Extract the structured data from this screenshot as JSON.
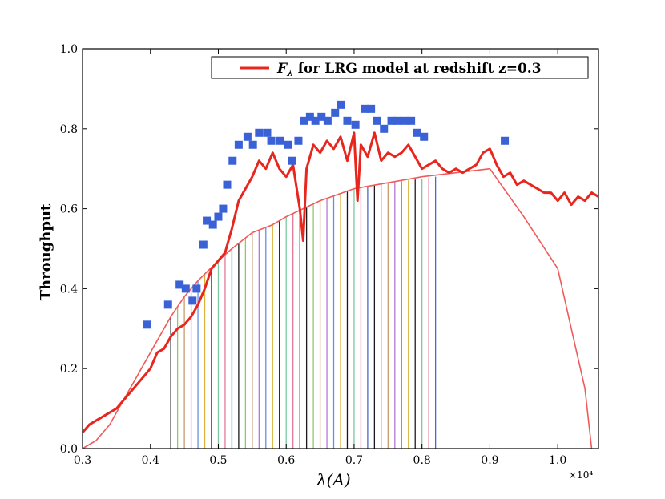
{
  "chart_data": {
    "type": "line",
    "title": "",
    "xlabel": "λ(A)",
    "ylabel": "Throughput",
    "x_multiplier": "×10⁴",
    "xlim": [
      0.3,
      1.06
    ],
    "ylim": [
      0.0,
      1.0
    ],
    "grid": false,
    "legend_placement": "top-right",
    "x_ticks": [
      0.3,
      0.4,
      0.5,
      0.6,
      0.7,
      0.8,
      0.9,
      1.0
    ],
    "x_tick_labels": [
      "0.3",
      "0.4",
      "0.5",
      "0.6",
      "0.7",
      "0.8",
      "0.9",
      "1.0"
    ],
    "y_ticks": [
      0.0,
      0.2,
      0.4,
      0.6,
      0.8,
      1.0
    ],
    "y_tick_labels": [
      "0.0",
      "0.2",
      "0.4",
      "0.6",
      "0.8",
      "1.0"
    ],
    "legend": {
      "label": "F_λ for LRG model at redshift z=0.3",
      "label_prefix": "F",
      "label_sub": "λ",
      "label_rest": " for LRG model at redshift z=0.3",
      "color": "#e8261e"
    },
    "series": [
      {
        "name": "F_λ for LRG model at redshift z=0.3",
        "style": "line",
        "color": "#e8261e",
        "x": [
          0.3,
          0.31,
          0.32,
          0.33,
          0.34,
          0.35,
          0.36,
          0.37,
          0.38,
          0.39,
          0.4,
          0.41,
          0.42,
          0.43,
          0.44,
          0.45,
          0.46,
          0.47,
          0.48,
          0.49,
          0.5,
          0.51,
          0.52,
          0.53,
          0.54,
          0.55,
          0.56,
          0.57,
          0.58,
          0.59,
          0.6,
          0.61,
          0.62,
          0.625,
          0.63,
          0.64,
          0.65,
          0.66,
          0.67,
          0.68,
          0.69,
          0.7,
          0.705,
          0.71,
          0.72,
          0.73,
          0.74,
          0.75,
          0.76,
          0.77,
          0.78,
          0.79,
          0.8,
          0.81,
          0.82,
          0.83,
          0.84,
          0.85,
          0.86,
          0.87,
          0.88,
          0.89,
          0.9,
          0.905,
          0.91,
          0.92,
          0.93,
          0.94,
          0.95,
          0.96,
          0.97,
          0.98,
          0.99,
          1.0,
          1.01,
          1.02,
          1.03,
          1.04,
          1.05,
          1.06
        ],
        "y": [
          0.04,
          0.06,
          0.07,
          0.08,
          0.09,
          0.1,
          0.12,
          0.14,
          0.16,
          0.18,
          0.2,
          0.24,
          0.25,
          0.28,
          0.3,
          0.31,
          0.33,
          0.36,
          0.4,
          0.45,
          0.47,
          0.49,
          0.55,
          0.62,
          0.65,
          0.68,
          0.72,
          0.7,
          0.74,
          0.7,
          0.68,
          0.71,
          0.6,
          0.52,
          0.7,
          0.76,
          0.74,
          0.77,
          0.75,
          0.78,
          0.72,
          0.79,
          0.62,
          0.76,
          0.73,
          0.79,
          0.72,
          0.74,
          0.73,
          0.74,
          0.76,
          0.73,
          0.7,
          0.71,
          0.72,
          0.7,
          0.69,
          0.7,
          0.69,
          0.7,
          0.71,
          0.74,
          0.75,
          0.73,
          0.71,
          0.68,
          0.69,
          0.66,
          0.67,
          0.66,
          0.65,
          0.64,
          0.64,
          0.62,
          0.64,
          0.61,
          0.63,
          0.62,
          0.64,
          0.63
        ]
      },
      {
        "name": "",
        "style": "line",
        "color": "#f05a5a",
        "x": [
          0.3,
          0.32,
          0.34,
          0.36,
          0.38,
          0.4,
          0.43,
          0.45,
          0.47,
          0.5,
          0.52,
          0.55,
          0.58,
          0.6,
          0.65,
          0.7,
          0.75,
          0.8,
          0.85,
          0.9,
          0.95,
          1.0,
          1.02,
          1.04,
          1.05
        ],
        "y": [
          0.0,
          0.02,
          0.06,
          0.12,
          0.18,
          0.24,
          0.33,
          0.38,
          0.42,
          0.47,
          0.5,
          0.54,
          0.56,
          0.58,
          0.62,
          0.65,
          0.665,
          0.68,
          0.69,
          0.7,
          0.58,
          0.45,
          0.3,
          0.15,
          0.0
        ]
      },
      {
        "name": "",
        "style": "markers",
        "color": "#3a62d6",
        "x": [
          0.395,
          0.426,
          0.443,
          0.452,
          0.462,
          0.468,
          0.478,
          0.483,
          0.492,
          0.5,
          0.507,
          0.513,
          0.521,
          0.53,
          0.543,
          0.551,
          0.56,
          0.572,
          0.578,
          0.591,
          0.603,
          0.609,
          0.618,
          0.626,
          0.635,
          0.643,
          0.652,
          0.661,
          0.672,
          0.68,
          0.69,
          0.702,
          0.716,
          0.725,
          0.734,
          0.744,
          0.755,
          0.764,
          0.774,
          0.784,
          0.793,
          0.803,
          0.922
        ],
        "y": [
          0.31,
          0.36,
          0.41,
          0.4,
          0.37,
          0.4,
          0.51,
          0.57,
          0.56,
          0.58,
          0.6,
          0.66,
          0.72,
          0.76,
          0.78,
          0.76,
          0.79,
          0.79,
          0.77,
          0.77,
          0.76,
          0.72,
          0.77,
          0.82,
          0.83,
          0.82,
          0.83,
          0.82,
          0.84,
          0.86,
          0.82,
          0.81,
          0.85,
          0.85,
          0.82,
          0.8,
          0.82,
          0.82,
          0.82,
          0.82,
          0.79,
          0.78,
          0.77
        ]
      }
    ],
    "filter_bands": {
      "x_start": 0.43,
      "x_end": 0.82,
      "count": 40,
      "envelope_x": [
        0.43,
        0.45,
        0.47,
        0.5,
        0.52,
        0.55,
        0.58,
        0.6,
        0.65,
        0.7,
        0.75,
        0.8,
        0.82
      ],
      "envelope_y": [
        0.33,
        0.38,
        0.42,
        0.47,
        0.5,
        0.54,
        0.56,
        0.58,
        0.62,
        0.65,
        0.665,
        0.675,
        0.68
      ],
      "colors": [
        "#1a1a1a",
        "#8ec86a",
        "#c89a6a",
        "#b07ad6",
        "#6a8ee0",
        "#d9b33a",
        "#1a1a1a",
        "#7ac8a0",
        "#e07a9a",
        "#4a6ac8"
      ]
    }
  }
}
